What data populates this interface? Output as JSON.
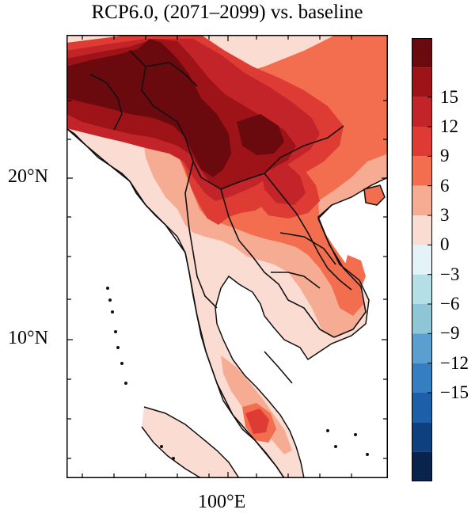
{
  "title": "RCP6.0, (2071–2099) vs. baseline",
  "axes": {
    "lat_labels": [
      {
        "text": "20°N",
        "lat": 20
      },
      {
        "text": "10°N",
        "lat": 10
      }
    ],
    "lon_labels": [
      {
        "text": "100°E",
        "lon": 100
      }
    ],
    "lon_range": [
      90,
      110
    ],
    "lat_range": [
      0,
      29
    ]
  },
  "colorbar": {
    "levels": [
      15,
      12,
      9,
      6,
      3,
      0,
      -3,
      -6,
      -9,
      -12,
      -15
    ],
    "level_labels": [
      "15",
      "12",
      "9",
      "6",
      "3",
      "0",
      "−3",
      "−6",
      "−9",
      "−12",
      "−15"
    ],
    "colors": [
      "#6a0a0f",
      "#9e1317",
      "#c2242a",
      "#dd3b33",
      "#f26e4f",
      "#f6ab93",
      "#fbdcd2",
      "#e3f3f8",
      "#b5dfe6",
      "#8ec6d8",
      "#5a9fcf",
      "#357fc0",
      "#1d5fa8",
      "#0e3f7f",
      "#08244d"
    ]
  }
}
